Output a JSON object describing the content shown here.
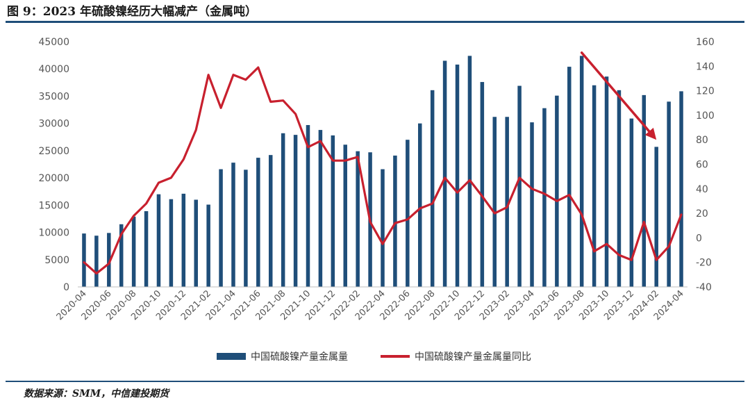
{
  "title": "图 9：2023 年硫酸镍经历大幅减产（金属吨）",
  "source": "数据来源：SMM，中信建投期货",
  "colors": {
    "bar": "#1f4e79",
    "line": "#c8202e",
    "rule": "#1f4e79"
  },
  "chart_data": {
    "type": "bar",
    "categories": [
      "2020-04",
      "2020-05",
      "2020-06",
      "2020-07",
      "2020-08",
      "2020-09",
      "2020-10",
      "2020-11",
      "2020-12",
      "2021-01",
      "2021-02",
      "2021-03",
      "2021-04",
      "2021-05",
      "2021-06",
      "2021-07",
      "2021-08",
      "2021-09",
      "2021-10",
      "2021-11",
      "2021-12",
      "2022-01",
      "2022-02",
      "2022-03",
      "2022-04",
      "2022-05",
      "2022-06",
      "2022-07",
      "2022-08",
      "2022-09",
      "2022-10",
      "2022-11",
      "2022-12",
      "2023-01",
      "2023-02",
      "2023-03",
      "2023-04",
      "2023-05",
      "2023-06",
      "2023-07",
      "2023-08",
      "2023-09",
      "2023-10",
      "2023-11",
      "2023-12",
      "2024-01",
      "2024-02",
      "2024-03",
      "2024-04"
    ],
    "x_tick_labels": [
      "2020-04",
      "2020-06",
      "2020-08",
      "2020-10",
      "2020-12",
      "2021-02",
      "2021-04",
      "2021-06",
      "2021-08",
      "2021-10",
      "2021-12",
      "2022-02",
      "2022-04",
      "2022-06",
      "2022-08",
      "2022-10",
      "2022-12",
      "2023-02",
      "2023-04",
      "2023-06",
      "2023-08",
      "2023-10",
      "2023-12",
      "2024-02",
      "2024-04"
    ],
    "series": [
      {
        "name": "中国硫酸镍产量金属量",
        "type": "bar",
        "axis": "left",
        "values": [
          9800,
          9400,
          9900,
          11500,
          12900,
          13900,
          17000,
          16100,
          17100,
          16000,
          15100,
          21600,
          22800,
          21500,
          23700,
          24200,
          28200,
          27900,
          29700,
          28800,
          27800,
          26100,
          24900,
          24700,
          21600,
          24100,
          27000,
          30000,
          36100,
          41500,
          40800,
          42400,
          37600,
          31200,
          31200,
          36900,
          30200,
          32800,
          35100,
          40400,
          42400,
          37000,
          38600,
          36100,
          30900,
          35200,
          25700,
          34000,
          35900
        ]
      },
      {
        "name": "中国硫酸镍产量金属量同比",
        "type": "line",
        "axis": "right",
        "values": [
          -20,
          -29,
          -21,
          3,
          18,
          28,
          45,
          49,
          64,
          88,
          133,
          106,
          133,
          129,
          139,
          111,
          112,
          101,
          74,
          79,
          63,
          63,
          66,
          13,
          -5,
          12,
          15,
          24,
          28,
          49,
          37,
          47,
          34,
          20,
          25,
          49,
          40,
          36,
          30,
          35,
          19,
          -11,
          -5,
          -14,
          -18,
          13,
          -18,
          -7,
          19
        ]
      }
    ],
    "yleft": {
      "min": 0,
      "max": 45000,
      "ticks": [
        "0",
        "5000",
        "10000",
        "15000",
        "20000",
        "25000",
        "30000",
        "35000",
        "40000",
        "45000"
      ]
    },
    "yright": {
      "min": -40,
      "max": 160,
      "ticks": [
        "-40",
        "-20",
        "0",
        "20",
        "40",
        "60",
        "80",
        "100",
        "120",
        "140",
        "160"
      ]
    },
    "annotation": {
      "type": "arrow",
      "color": "#c8202e",
      "from": [
        "2023-08",
        151
      ],
      "to": [
        "2024-02",
        80
      ]
    },
    "legend": "bottom-center",
    "grid": false
  }
}
